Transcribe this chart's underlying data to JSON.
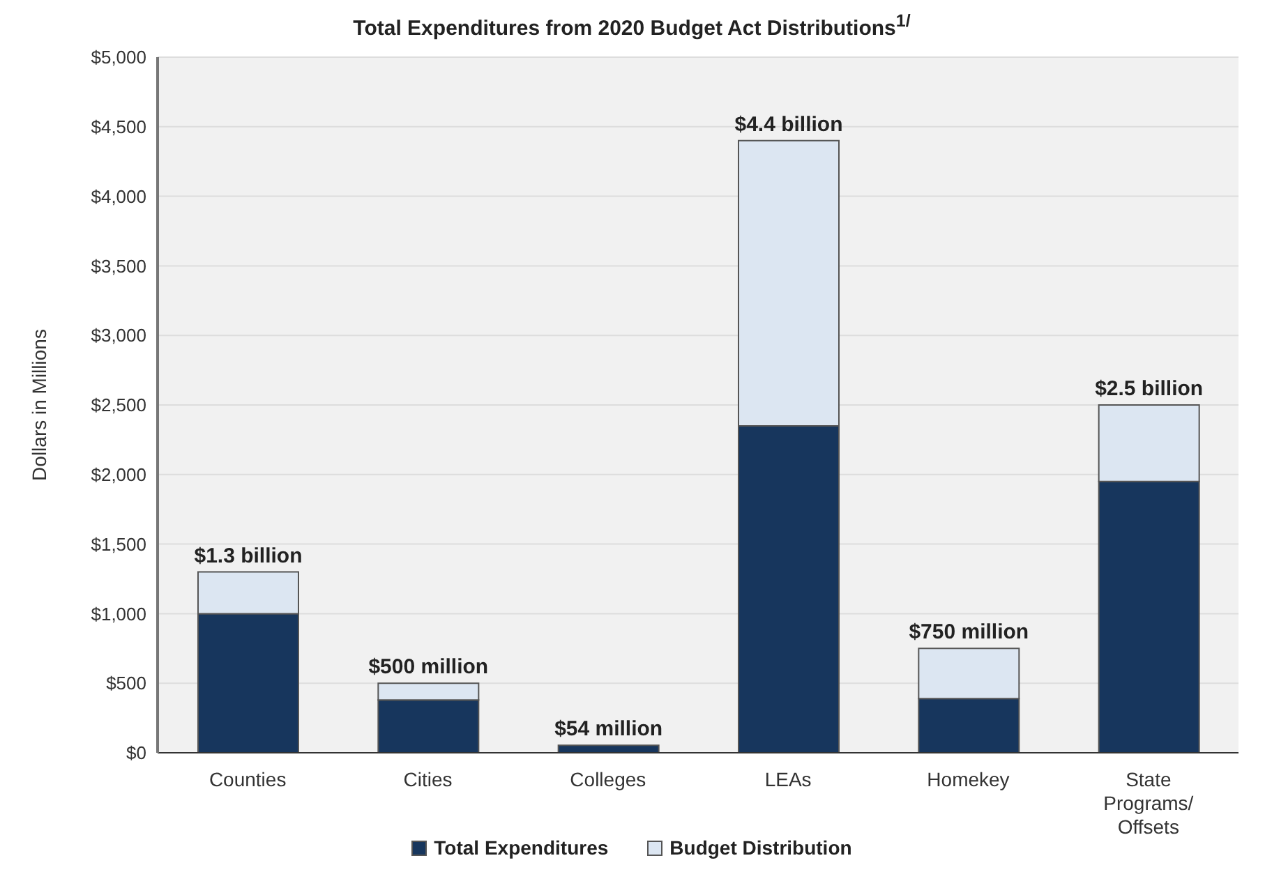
{
  "chart_data": {
    "type": "bar",
    "title": "Total Expenditures from 2020 Budget Act Distributions$^{1/}$",
    "ylabel": "Dollars in Millions",
    "categories": [
      "Counties",
      "Cities",
      "Colleges",
      "LEAs",
      "Homekey",
      "State Programs/ Offsets"
    ],
    "series": [
      {
        "name": "Total Expenditures",
        "color": "#17365d",
        "values": [
          1000,
          380,
          54,
          2350,
          390,
          1950
        ]
      },
      {
        "name": "Budget Distribution",
        "color": "#dce6f2",
        "values": [
          300,
          120,
          0,
          2050,
          360,
          550
        ]
      }
    ],
    "stacked": true,
    "totals": [
      "$1.3 billion",
      "$500 million",
      "$54 million",
      "$4.4 billion",
      "$750 million",
      "$2.5 billion"
    ],
    "ylim": [
      0,
      5000
    ],
    "yticks": [
      {
        "value": 0,
        "label": "$0"
      },
      {
        "value": 500,
        "label": "$500"
      },
      {
        "value": 1000,
        "label": "$1,000"
      },
      {
        "value": 1500,
        "label": "$1,500"
      },
      {
        "value": 2000,
        "label": "$2,000"
      },
      {
        "value": 2500,
        "label": "$2,500"
      },
      {
        "value": 3000,
        "label": "$3,000"
      },
      {
        "value": 3500,
        "label": "$3,500"
      },
      {
        "value": 4000,
        "label": "$4,000"
      },
      {
        "value": 4500,
        "label": "$4,500"
      },
      {
        "value": 5000,
        "label": "$5,000"
      }
    ],
    "grid": "y",
    "legend": "bottom"
  }
}
